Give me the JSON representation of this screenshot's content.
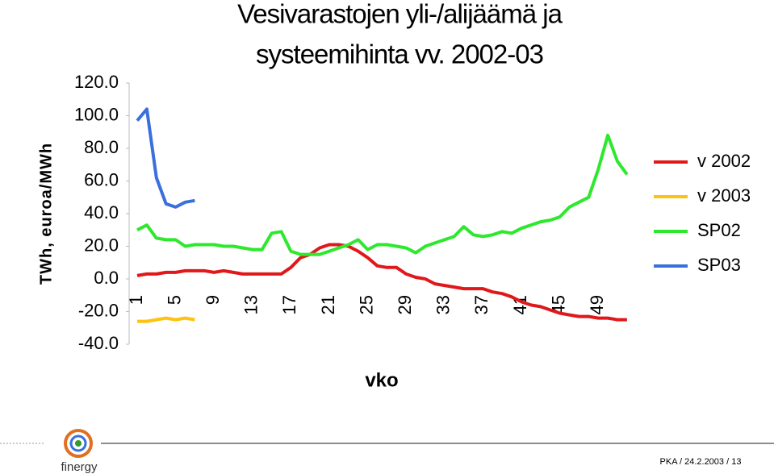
{
  "chart_data": {
    "type": "line",
    "title": "Vesivarastojen yli-/alijäämä ja",
    "subtitle": "systeemihinta vv. 2002-03",
    "x_label": "vko",
    "y_label": "TWh, euroa/MWh",
    "categories": [
      "1",
      null,
      null,
      null,
      "5",
      null,
      null,
      null,
      "9",
      null,
      null,
      null,
      "13",
      null,
      null,
      null,
      "17",
      null,
      null,
      null,
      "21",
      null,
      null,
      null,
      "25",
      null,
      null,
      null,
      "29",
      null,
      null,
      null,
      "33",
      null,
      null,
      null,
      "37",
      null,
      null,
      null,
      "41",
      null,
      null,
      null,
      "45",
      null,
      null,
      null,
      "49",
      null,
      null,
      null
    ],
    "ylim": [
      -40,
      120
    ],
    "yticks": [
      {
        "value": -40,
        "label": "-40.0"
      },
      {
        "value": -20,
        "label": "-20.0"
      },
      {
        "value": 0,
        "label": "0.0"
      },
      {
        "value": 20,
        "label": "20.0"
      },
      {
        "value": 40,
        "label": "40.0"
      },
      {
        "value": 60,
        "label": "60.0"
      },
      {
        "value": 80,
        "label": "80.0"
      },
      {
        "value": 100,
        "label": "100.0"
      },
      {
        "value": 120,
        "label": "120.0"
      }
    ],
    "grid": false,
    "legend": "right",
    "series": [
      {
        "name": "v 2002",
        "color": "#e0181b",
        "values": [
          2,
          3,
          3,
          4,
          4,
          5,
          5,
          5,
          4,
          5,
          4,
          3,
          3,
          3,
          3,
          3,
          7,
          13,
          15,
          19,
          21,
          21,
          20,
          17,
          13,
          8,
          7,
          7,
          3,
          1,
          0,
          -3,
          -4,
          -5,
          -6,
          -6,
          -6,
          -8,
          -9,
          -11,
          -14,
          -16,
          -17,
          -19,
          -21,
          -22,
          -23,
          -23,
          -24,
          -24,
          -25,
          -25
        ]
      },
      {
        "name": "v 2003",
        "color": "#ffc20e",
        "values": [
          -26,
          -26,
          -25,
          -24,
          -25,
          -24,
          -25,
          null,
          null,
          null,
          null,
          null,
          null,
          null,
          null,
          null,
          null,
          null,
          null,
          null,
          null,
          null,
          null,
          null,
          null,
          null,
          null,
          null,
          null,
          null,
          null,
          null,
          null,
          null,
          null,
          null,
          null,
          null,
          null,
          null,
          null,
          null,
          null,
          null,
          null,
          null,
          null,
          null,
          null,
          null,
          null,
          null
        ]
      },
      {
        "name": "SP02",
        "color": "#2ee82e",
        "values": [
          30,
          33,
          25,
          24,
          24,
          20,
          21,
          21,
          21,
          20,
          20,
          19,
          18,
          18,
          28,
          29,
          17,
          15,
          15,
          15,
          17,
          19,
          21,
          24,
          18,
          21,
          21,
          20,
          19,
          16,
          20,
          22,
          24,
          26,
          32,
          27,
          26,
          27,
          29,
          28,
          31,
          33,
          35,
          36,
          38,
          44,
          47,
          50,
          67,
          88,
          72,
          64
        ]
      },
      {
        "name": "SP03",
        "color": "#3a6fdc",
        "values": [
          97,
          104,
          62,
          46,
          44,
          47,
          48,
          null,
          null,
          null,
          null,
          null,
          null,
          null,
          null,
          null,
          null,
          null,
          null,
          null,
          null,
          null,
          null,
          null,
          null,
          null,
          null,
          null,
          null,
          null,
          null,
          null,
          null,
          null,
          null,
          null,
          null,
          null,
          null,
          null,
          null,
          null,
          null,
          null,
          null,
          null,
          null,
          null,
          null,
          null,
          null,
          null
        ]
      }
    ]
  },
  "footer": {
    "brand": "finergy",
    "note": "PKA / 24.2.2003 / 13"
  }
}
